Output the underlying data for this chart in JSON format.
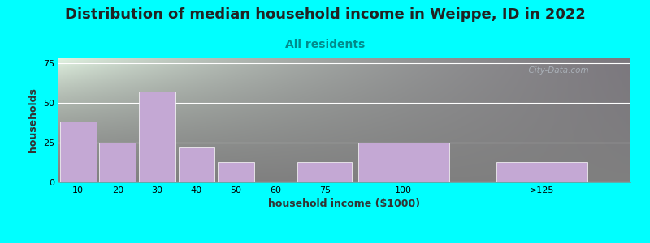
{
  "title": "Distribution of median household income in Weippe, ID in 2022",
  "subtitle": "All residents",
  "xlabel": "household income ($1000)",
  "ylabel": "households",
  "background_color": "#00FFFF",
  "plot_bg_gradient_top": "#dff0df",
  "plot_bg_gradient_right": "#f0eaf5",
  "bar_color": "#c4a8d4",
  "categories": [
    "10",
    "20",
    "30",
    "40",
    "50",
    "60",
    "75",
    "100",
    ">125"
  ],
  "values": [
    38,
    25,
    57,
    22,
    13,
    0,
    13,
    25,
    13
  ],
  "bar_lefts": [
    0,
    10,
    20,
    30,
    40,
    50,
    60,
    75,
    110
  ],
  "bar_widths": [
    10,
    10,
    10,
    10,
    10,
    10,
    15,
    25,
    25
  ],
  "tick_positions": [
    5,
    15,
    25,
    35,
    45,
    55,
    67.5,
    87.5,
    122.5
  ],
  "xlim": [
    0,
    145
  ],
  "yticks": [
    0,
    25,
    50,
    75
  ],
  "ylim": [
    0,
    78
  ],
  "title_fontsize": 13,
  "subtitle_fontsize": 10,
  "subtitle_color": "#008B8B",
  "axis_label_fontsize": 9,
  "tick_fontsize": 8,
  "watermark_text": "  City-Data.com",
  "watermark_color": "#b0b8c0"
}
